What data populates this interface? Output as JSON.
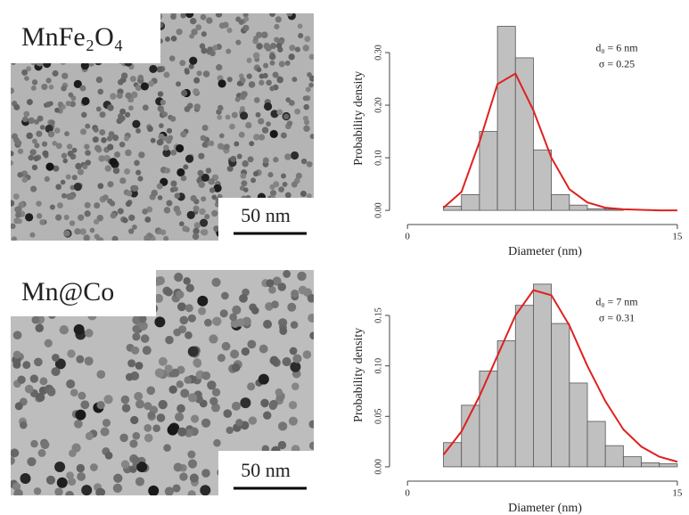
{
  "images": [
    {
      "label": "MnFe₂O₄",
      "scale_bar": "50 nm"
    },
    {
      "label": "Mn@Co",
      "scale_bar": "50 nm"
    }
  ],
  "chart_data": [
    {
      "type": "histogram",
      "y_label": "Probability density",
      "x_label": "Diameter (nm)",
      "annotation": [
        "d₀ = 6 nm",
        "σ = 0.25"
      ],
      "bins": [
        2,
        3,
        4,
        5,
        6,
        7,
        8,
        9,
        10,
        11,
        12
      ],
      "values": [
        0.008,
        0.03,
        0.15,
        0.35,
        0.29,
        0.115,
        0.03,
        0.01,
        0.003,
        0.002
      ],
      "color": "#c0c0c0",
      "fit": {
        "color": "#e02020",
        "x": [
          2,
          3,
          4,
          5,
          6,
          7,
          8,
          9,
          10,
          11,
          12,
          13,
          14,
          15
        ],
        "y": [
          0.005,
          0.035,
          0.13,
          0.24,
          0.26,
          0.19,
          0.1,
          0.04,
          0.015,
          0.005,
          0.002,
          0.001,
          0,
          0
        ]
      },
      "xlim": [
        -1,
        15.5
      ],
      "xticks": [
        0,
        15
      ],
      "ylim": [
        -0.01,
        0.36
      ],
      "yticks": [
        {
          "value": 0,
          "label": "0.00"
        },
        {
          "value": 0.1,
          "label": "0.10"
        },
        {
          "value": 0.2,
          "label": "0.20"
        },
        {
          "value": 0.3,
          "label": "0.30"
        }
      ]
    },
    {
      "type": "histogram",
      "y_label": "Probability density",
      "x_label": "Diameter (nm)",
      "annotation": [
        "d₀ = 7 nm",
        "σ = 0.31"
      ],
      "bins": [
        2,
        3,
        4,
        5,
        6,
        7,
        8,
        9,
        10,
        11,
        12,
        13,
        14,
        15
      ],
      "values": [
        0.024,
        0.061,
        0.095,
        0.125,
        0.16,
        0.181,
        0.142,
        0.083,
        0.045,
        0.021,
        0.01,
        0.004,
        0.003
      ],
      "color": "#c0c0c0",
      "fit": {
        "color": "#e02020",
        "x": [
          2,
          3,
          4,
          5,
          6,
          7,
          8,
          9,
          10,
          11,
          12,
          13,
          14,
          15
        ],
        "y": [
          0.012,
          0.035,
          0.07,
          0.11,
          0.15,
          0.175,
          0.17,
          0.14,
          0.1,
          0.065,
          0.037,
          0.02,
          0.01,
          0.005
        ]
      },
      "xlim": [
        -1,
        15.5
      ],
      "xticks": [
        0,
        15
      ],
      "ylim": [
        -0.008,
        0.19
      ],
      "yticks": [
        {
          "value": 0,
          "label": "0.00"
        },
        {
          "value": 0.05,
          "label": "0.05"
        },
        {
          "value": 0.1,
          "label": "0.10"
        },
        {
          "value": 0.15,
          "label": "0.15"
        }
      ]
    }
  ]
}
